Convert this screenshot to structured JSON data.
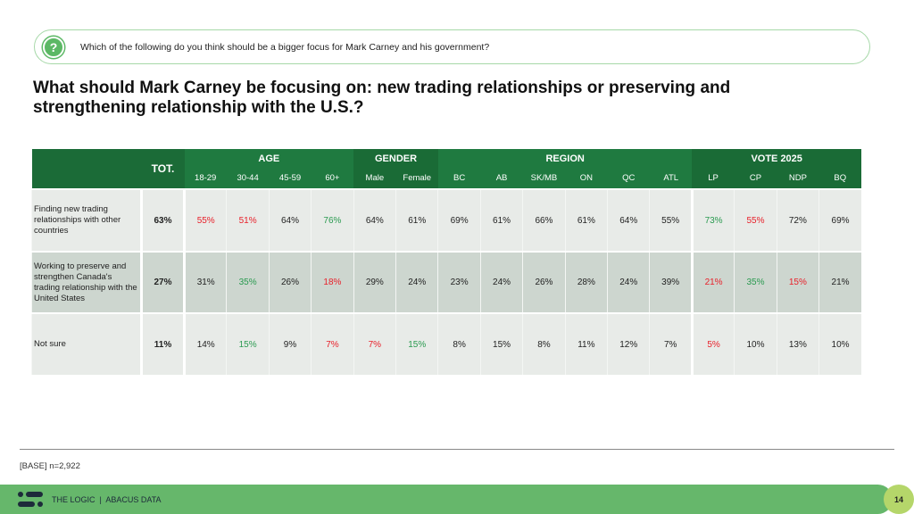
{
  "question": "Which of the following do you think should be a bigger focus for Mark Carney and his government?",
  "title": "What should Mark Carney be focusing on: new trading relationships or preserving and strengthening relationship with the U.S.?",
  "table": {
    "tot_label": "TOT.",
    "groups": [
      {
        "label": "AGE",
        "cols": [
          "18-29",
          "30-44",
          "45-59",
          "60+"
        ]
      },
      {
        "label": "GENDER",
        "cols": [
          "Male",
          "Female"
        ]
      },
      {
        "label": "REGION",
        "cols": [
          "BC",
          "AB",
          "SK/MB",
          "ON",
          "QC",
          "ATL"
        ]
      },
      {
        "label": "VOTE 2025",
        "cols": [
          "LP",
          "CP",
          "NDP",
          "BQ"
        ]
      }
    ],
    "rows": [
      {
        "label": "Finding new trading relationships with other countries",
        "tot": "63%",
        "values": [
          "55%",
          "51%",
          "64%",
          "76%",
          "64%",
          "61%",
          "69%",
          "61%",
          "66%",
          "61%",
          "64%",
          "55%",
          "73%",
          "55%",
          "72%",
          "69%"
        ],
        "flags": [
          "low",
          "low",
          "",
          "high",
          "",
          "",
          "",
          "",
          "",
          "",
          "",
          "",
          "high",
          "low",
          "",
          ""
        ]
      },
      {
        "label": "Working to preserve and strengthen Canada's trading relationship with the United States",
        "tot": "27%",
        "values": [
          "31%",
          "35%",
          "26%",
          "18%",
          "29%",
          "24%",
          "23%",
          "24%",
          "26%",
          "28%",
          "24%",
          "39%",
          "21%",
          "35%",
          "15%",
          "21%"
        ],
        "flags": [
          "",
          "high",
          "",
          "low",
          "",
          "",
          "",
          "",
          "",
          "",
          "",
          "",
          "low",
          "high",
          "low",
          ""
        ]
      },
      {
        "label": "Not sure",
        "tot": "11%",
        "values": [
          "14%",
          "15%",
          "9%",
          "7%",
          "7%",
          "15%",
          "8%",
          "15%",
          "8%",
          "11%",
          "12%",
          "7%",
          "5%",
          "10%",
          "13%",
          "10%"
        ],
        "flags": [
          "",
          "high",
          "",
          "low",
          "low",
          "high",
          "",
          "",
          "",
          "",
          "",
          "",
          "low",
          "",
          "",
          ""
        ]
      }
    ]
  },
  "base": "[BASE] n=2,922",
  "footer": {
    "brand": "THE LOGIC  |  ABACUS DATA",
    "page": "14"
  },
  "colors": {
    "header_green": "#1f7a40",
    "high": "#2a9a50",
    "low": "#e8202a",
    "footer": "#66b76b"
  }
}
